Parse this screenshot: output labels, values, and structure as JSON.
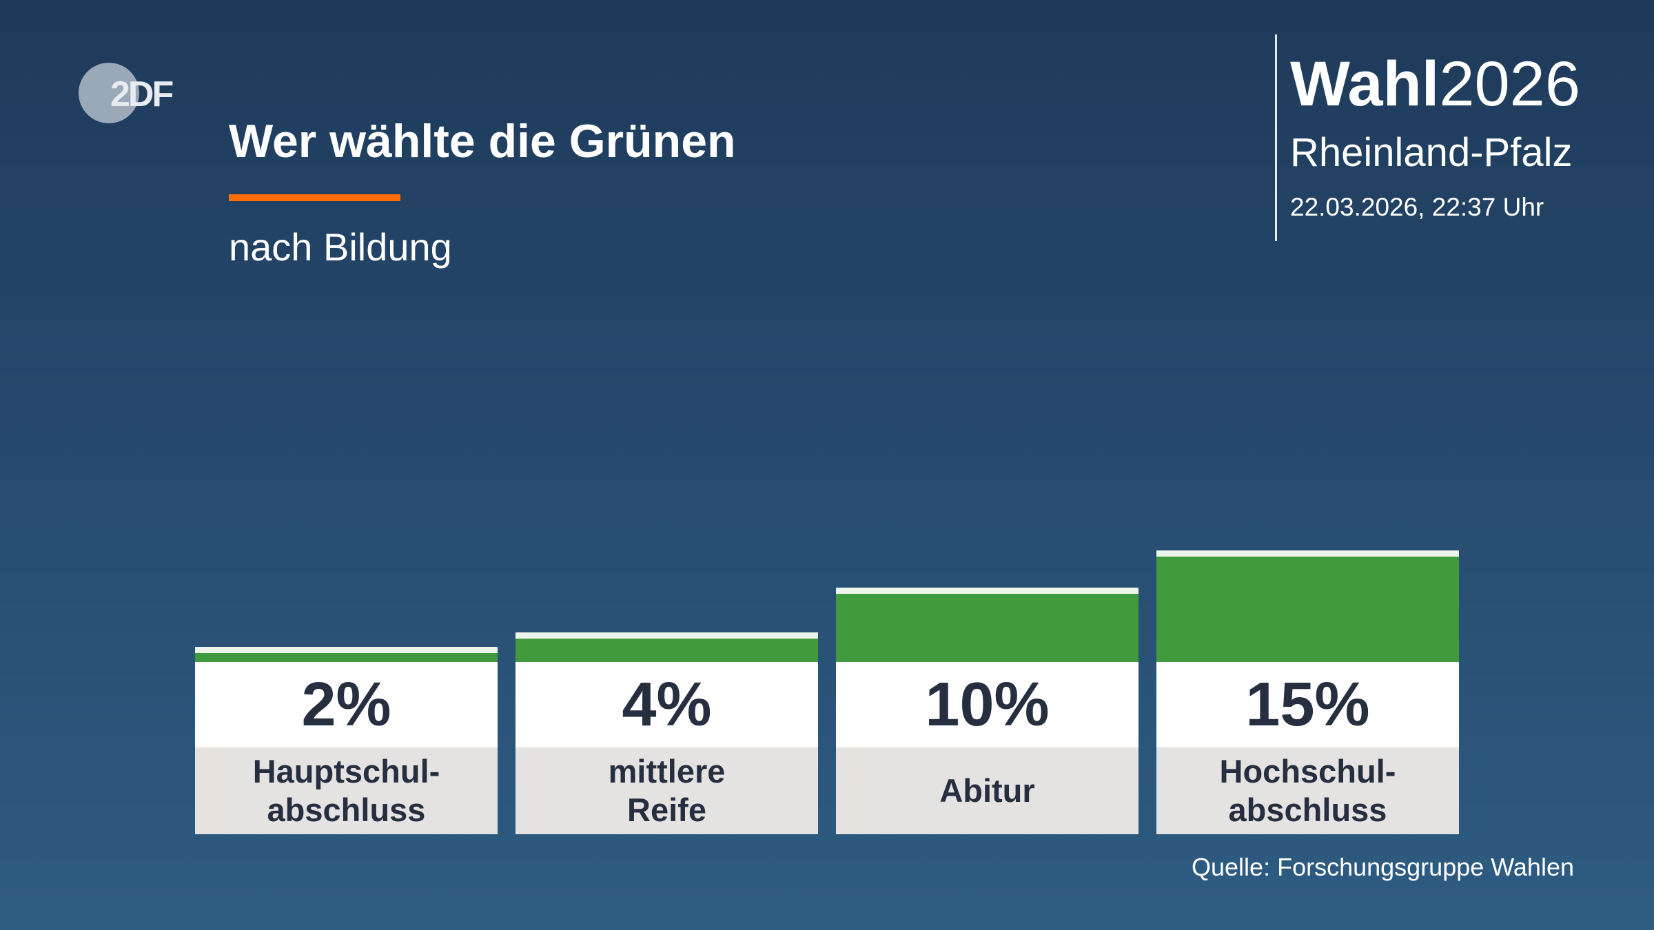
{
  "logo": {
    "text": "2DF"
  },
  "header": {
    "title": "Wer wählte die Grünen",
    "subtitle": "nach Bildung",
    "brand_bold": "Wahl",
    "brand_year": "2026",
    "region": "Rheinland-Pfalz",
    "timestamp": "22.03.2026, 22:37 Uhr"
  },
  "source": "Quelle: Forschungsgruppe Wahlen",
  "colors": {
    "bar": "#429a3e",
    "accent": "#ff6e00",
    "background": "#26496d"
  },
  "chart_data": {
    "type": "bar",
    "title": "Wer wählte die Grünen",
    "subtitle": "nach Bildung",
    "categories": [
      "Hauptschul-\nabschluss",
      "mittlere\nReife",
      "Abitur",
      "Hochschul-\nabschluss"
    ],
    "values": [
      2,
      4,
      10,
      15
    ],
    "value_labels": [
      "2%",
      "4%",
      "10%",
      "15%"
    ],
    "unit": "%",
    "grid": false
  }
}
